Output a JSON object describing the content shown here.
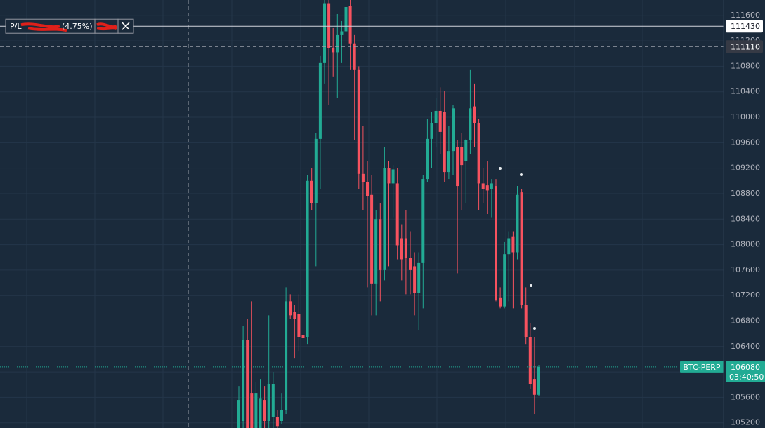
{
  "chart_data": {
    "type": "candlestick",
    "up_color": "#22ab94",
    "down_color": "#f7525f",
    "ylim": [
      105120,
      111840
    ],
    "yticks": [
      105200,
      105600,
      106000,
      106400,
      106800,
      107200,
      107600,
      108000,
      108400,
      108800,
      109200,
      109600,
      110000,
      110400,
      110800,
      111200,
      111600
    ],
    "grid": true,
    "open": [
      105120,
      105230,
      106500,
      105670,
      105120,
      105120,
      105560,
      105230,
      105290,
      105290,
      105230,
      105400,
      107110,
      106940,
      106910,
      106580,
      106550,
      109000,
      108650,
      109660,
      110850,
      111790,
      111090,
      111020,
      111290,
      111350,
      111750,
      111160,
      110740,
      109110,
      108980,
      108780,
      107380,
      108400,
      107600,
      109200,
      108960,
      108960,
      108100,
      108100,
      107790,
      107660,
      107240,
      107710,
      109030,
      109660,
      109910,
      110100,
      110080,
      109140,
      109470,
      109530,
      109530,
      109310,
      109640,
      110170,
      109910,
      108960,
      108930,
      108870,
      108920,
      107160,
      107030,
      107850,
      108120,
      107880,
      108820,
      107050,
      106550,
      105890,
      105640
    ],
    "high": [
      105780,
      106720,
      106830,
      107110,
      105840,
      105890,
      105780,
      106890,
      106000,
      105400,
      105670,
      107330,
      107220,
      107050,
      107220,
      108100,
      109090,
      109200,
      109750,
      110960,
      111840,
      111840,
      111400,
      111620,
      111510,
      111840,
      111840,
      111290,
      110800,
      109860,
      109310,
      109090,
      108540,
      108650,
      109530,
      109310,
      109250,
      109200,
      108320,
      108540,
      108210,
      107880,
      107880,
      109090,
      109970,
      110080,
      110300,
      110470,
      110410,
      109860,
      110190,
      109640,
      109750,
      109660,
      110740,
      110520,
      109970,
      109200,
      109310,
      109030,
      109030,
      107330,
      108040,
      108210,
      108210,
      108920,
      108870,
      107330,
      106770,
      106550,
      106110
    ],
    "low": [
      105120,
      105120,
      105120,
      105120,
      105120,
      105120,
      105120,
      105120,
      105120,
      105120,
      105180,
      105340,
      106830,
      106220,
      106330,
      106110,
      106440,
      108540,
      107660,
      108870,
      110520,
      110190,
      110630,
      110300,
      110850,
      111070,
      110740,
      109640,
      108870,
      108540,
      107330,
      106890,
      106890,
      107110,
      107440,
      107660,
      108430,
      107770,
      107440,
      107220,
      107220,
      106890,
      106660,
      107000,
      108980,
      109200,
      109530,
      109420,
      108980,
      109030,
      109090,
      107550,
      108540,
      108650,
      109420,
      109530,
      108540,
      108650,
      108480,
      108430,
      107110,
      107000,
      107000,
      107110,
      107000,
      107770,
      107000,
      106440,
      105730,
      105340,
      105620
    ],
    "close": [
      105560,
      106500,
      105120,
      105120,
      105670,
      105590,
      105230,
      105810,
      105810,
      105150,
      105400,
      107110,
      106890,
      106830,
      106550,
      106530,
      109000,
      108650,
      109660,
      110850,
      111790,
      111090,
      111020,
      111290,
      111350,
      111730,
      111160,
      110740,
      109110,
      108980,
      108760,
      107380,
      108400,
      107600,
      109200,
      108960,
      109180,
      107990,
      107770,
      107790,
      107600,
      107240,
      107710,
      109030,
      109660,
      109910,
      110100,
      109770,
      109140,
      109470,
      110140,
      108920,
      109250,
      109640,
      110140,
      109910,
      108960,
      108870,
      108850,
      108960,
      107130,
      107030,
      107850,
      108100,
      107880,
      108780,
      107050,
      106550,
      105810,
      105640,
      106080
    ],
    "position_line": {
      "label": "P/L",
      "pct": "(4.75%)",
      "price": 111430
    },
    "crosshair": {
      "price": 111110
    },
    "last": {
      "symbol": "BTC-PERP",
      "price": 106080,
      "countdown": "03:40:50"
    }
  }
}
